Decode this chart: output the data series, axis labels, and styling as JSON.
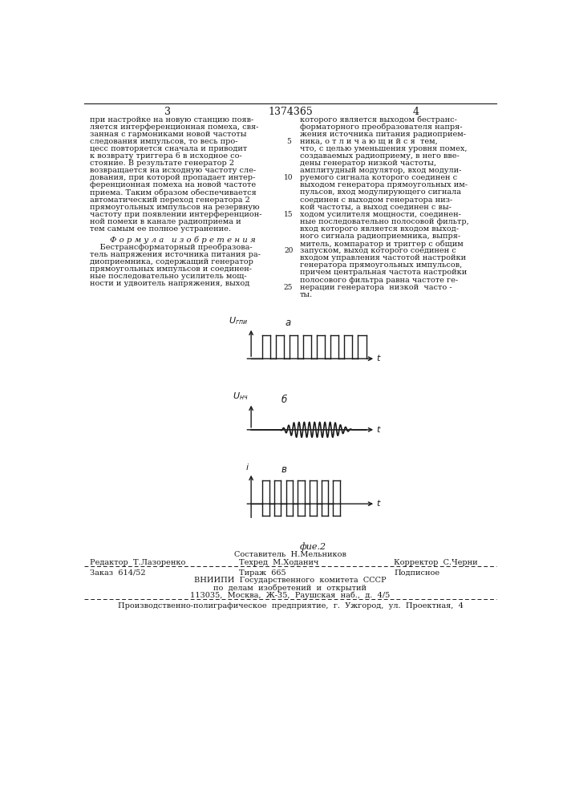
{
  "page_number_left": "3",
  "page_number_center": "1374365",
  "page_number_right": "4",
  "col1_text": [
    "при настройке на новую станцию появ-",
    "ляется интерференционная помеха, свя-",
    "занная с гармониками новой частоты",
    "следования импульсов, то весь про-",
    "цесс повторяется сначала и приводит",
    "к возврату триггера 6 в исходное со-",
    "стояние. В результате генератор 2",
    "возвращается на исходную частоту сле-",
    "дования, при которой пропадает интер-",
    "ференционная помеха на новой частоте",
    "приема. Таким образом обеспечивается",
    "автоматический переход генератора 2",
    "прямоугольных импульсов на резервную",
    "частоту при появлении интерференцион-",
    "ной помехи в канале радиоприема и",
    "тем самым ее полное устранение."
  ],
  "formula_header": "Ф о р м у л а   и з о б р е т е н и я",
  "col1_formula_text": [
    "    Бестрансформаторный преобразова-",
    "тель напряжения источника питания ра-",
    "диоприемника, содержащий генератор",
    "прямоугольных импульсов и соединен-",
    "ные последовательно усилитель мощ-",
    "ности и удвоитель напряжения, выход"
  ],
  "col2_text": [
    "которого является выходом бестранс-",
    "форматорного преобразователя напря-",
    "жения источника питания радиоприем-",
    "ника, о т л и ч а ю щ и й с я  тем,",
    "что, с целью уменьшения уровня помех,",
    "создаваемых радиоприему, в него вве-",
    "дены генератор низкой частоты,",
    "амплитудный модулятор, вход модули-",
    "руемого сигнала которого соединен с",
    "выходом генератора прямоугольных им-",
    "пульсов, вход модулирующего сигнала",
    "соединен с выходом генератора низ-",
    "кой частоты, а выход соединен с вы-",
    "ходом усилителя мощности, соединен-",
    "ные последовательно полосовой фильтр,",
    "вход которого является входом выход-",
    "ного сигнала радиоприемника, выпря-",
    "митель, компаратор и триггер с общим",
    "запуском, выход которого соединен с",
    "входом управления частотой настройки",
    "генератора прямоугольных импульсов,",
    "причем центральная частота настройки",
    "полосового фильтра равна частоте ге-",
    "нерации генератора  низкой  часто -",
    "ты."
  ],
  "fig_caption": "фие.2",
  "footer_sestavitel": "Составитель  Н.Мельников",
  "footer_editor": "Редактор  Т.Лазоренко",
  "footer_tehred": "Техред  М.Ходанич",
  "footer_korrektor": "Корректор  С.Черни",
  "footer_zakaz": "Заказ  614/52",
  "footer_tiraj": "Тираж  665",
  "footer_podpisnoe": "Подписное",
  "footer_vniip1": "ВНИИПИ  Государственного  комитета  СССР",
  "footer_vniip2": "по  делам  изобретений  и  открытий",
  "footer_vniip3": "113035,  Москва,  Ж-35,  Раушская  наб.,  д.  4/5",
  "footer_proizv": "Производственно-полиграфическое  предприятие,  г.  Ужгород,  ул.  Проектная,  4",
  "bg_color": "#ffffff",
  "text_color": "#1a1a1a",
  "font_size_body": 7.0,
  "font_size_small": 6.5
}
